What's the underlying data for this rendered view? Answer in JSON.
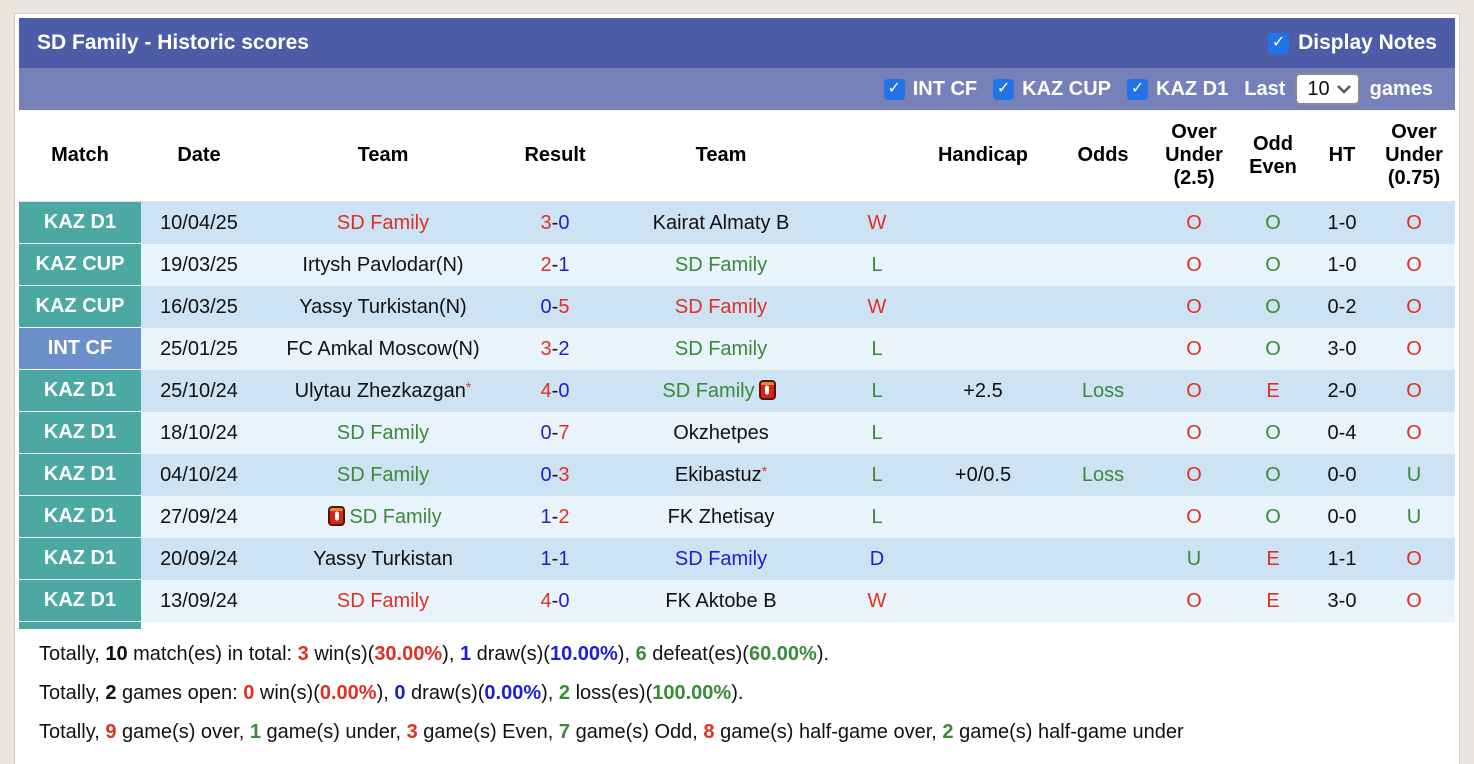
{
  "header": {
    "title": "SD Family - Historic scores",
    "display_notes": {
      "label": "Display Notes",
      "checked": true
    }
  },
  "filters": {
    "competitions": [
      {
        "label": "INT CF",
        "checked": true
      },
      {
        "label": "KAZ CUP",
        "checked": true
      },
      {
        "label": "KAZ D1",
        "checked": true
      }
    ],
    "last_label": "Last",
    "games_value": "10",
    "games_label": "games"
  },
  "colors": {
    "title_bar": "#4d5ca6",
    "filter_bar": "#7681ba",
    "checkbox_blue": "#2273e8",
    "badge_teal": "#4ba8a3",
    "badge_blue": "#6b90ca",
    "row_dark": "#cde2f3",
    "row_light": "#e9f3fb",
    "win_red": "#e03024",
    "loss_green": "#3b8a38",
    "draw_blue": "#1e1ed2"
  },
  "table": {
    "headers": [
      "Match",
      "Date",
      "Team",
      "Result",
      "Team",
      "",
      "Handicap",
      "Odds",
      "Over Under (2.5)",
      "Odd Even",
      "HT",
      "Over Under (0.75)"
    ],
    "rows": [
      {
        "league": "KAZ D1",
        "league_color": "teal",
        "date": "10/04/25",
        "home": {
          "name": "SD Family",
          "color": "red"
        },
        "result": {
          "home": "3",
          "home_color": "red",
          "away": "0",
          "away_color": "blue"
        },
        "away": {
          "name": "Kairat Almaty B",
          "color": "black"
        },
        "outcome": {
          "text": "W",
          "color": "red"
        },
        "handicap": "",
        "odds": {
          "text": "",
          "color": "green"
        },
        "ou25": {
          "text": "O",
          "color": "red"
        },
        "odd_even": {
          "text": "O",
          "color": "green"
        },
        "ht": "1-0",
        "ou075": {
          "text": "O",
          "color": "red"
        }
      },
      {
        "league": "KAZ CUP",
        "league_color": "teal",
        "date": "19/03/25",
        "home": {
          "name": "Irtysh Pavlodar(N)",
          "color": "black"
        },
        "result": {
          "home": "2",
          "home_color": "red",
          "away": "1",
          "away_color": "blue"
        },
        "away": {
          "name": "SD Family",
          "color": "green"
        },
        "outcome": {
          "text": "L",
          "color": "green"
        },
        "handicap": "",
        "odds": {
          "text": "",
          "color": "green"
        },
        "ou25": {
          "text": "O",
          "color": "red"
        },
        "odd_even": {
          "text": "O",
          "color": "green"
        },
        "ht": "1-0",
        "ou075": {
          "text": "O",
          "color": "red"
        }
      },
      {
        "league": "KAZ CUP",
        "league_color": "teal",
        "date": "16/03/25",
        "home": {
          "name": "Yassy Turkistan(N)",
          "color": "black"
        },
        "result": {
          "home": "0",
          "home_color": "blue",
          "away": "5",
          "away_color": "red"
        },
        "away": {
          "name": "SD Family",
          "color": "red"
        },
        "outcome": {
          "text": "W",
          "color": "red"
        },
        "handicap": "",
        "odds": {
          "text": "",
          "color": "green"
        },
        "ou25": {
          "text": "O",
          "color": "red"
        },
        "odd_even": {
          "text": "O",
          "color": "green"
        },
        "ht": "0-2",
        "ou075": {
          "text": "O",
          "color": "red"
        }
      },
      {
        "league": "INT CF",
        "league_color": "blue",
        "date": "25/01/25",
        "home": {
          "name": "FC Amkal Moscow(N)",
          "color": "black"
        },
        "result": {
          "home": "3",
          "home_color": "red",
          "away": "2",
          "away_color": "blue"
        },
        "away": {
          "name": "SD Family",
          "color": "green"
        },
        "outcome": {
          "text": "L",
          "color": "green"
        },
        "handicap": "",
        "odds": {
          "text": "",
          "color": "green"
        },
        "ou25": {
          "text": "O",
          "color": "red"
        },
        "odd_even": {
          "text": "O",
          "color": "green"
        },
        "ht": "3-0",
        "ou075": {
          "text": "O",
          "color": "red"
        }
      },
      {
        "league": "KAZ D1",
        "league_color": "teal",
        "date": "25/10/24",
        "home": {
          "name": "Ulytau Zhezkazgan",
          "color": "black",
          "star": true
        },
        "result": {
          "home": "4",
          "home_color": "red",
          "away": "0",
          "away_color": "blue"
        },
        "away": {
          "name": "SD Family",
          "color": "green",
          "card": "after"
        },
        "outcome": {
          "text": "L",
          "color": "green"
        },
        "handicap": "+2.5",
        "odds": {
          "text": "Loss",
          "color": "green"
        },
        "ou25": {
          "text": "O",
          "color": "red"
        },
        "odd_even": {
          "text": "E",
          "color": "red"
        },
        "ht": "2-0",
        "ou075": {
          "text": "O",
          "color": "red"
        }
      },
      {
        "league": "KAZ D1",
        "league_color": "teal",
        "date": "18/10/24",
        "home": {
          "name": "SD Family",
          "color": "green"
        },
        "result": {
          "home": "0",
          "home_color": "blue",
          "away": "7",
          "away_color": "red"
        },
        "away": {
          "name": "Okzhetpes",
          "color": "black"
        },
        "outcome": {
          "text": "L",
          "color": "green"
        },
        "handicap": "",
        "odds": {
          "text": "",
          "color": "green"
        },
        "ou25": {
          "text": "O",
          "color": "red"
        },
        "odd_even": {
          "text": "O",
          "color": "green"
        },
        "ht": "0-4",
        "ou075": {
          "text": "O",
          "color": "red"
        }
      },
      {
        "league": "KAZ D1",
        "league_color": "teal",
        "date": "04/10/24",
        "home": {
          "name": "SD Family",
          "color": "green"
        },
        "result": {
          "home": "0",
          "home_color": "blue",
          "away": "3",
          "away_color": "red"
        },
        "away": {
          "name": "Ekibastuz",
          "color": "black",
          "star": true
        },
        "outcome": {
          "text": "L",
          "color": "green"
        },
        "handicap": "+0/0.5",
        "odds": {
          "text": "Loss",
          "color": "green"
        },
        "ou25": {
          "text": "O",
          "color": "red"
        },
        "odd_even": {
          "text": "O",
          "color": "green"
        },
        "ht": "0-0",
        "ou075": {
          "text": "U",
          "color": "green"
        }
      },
      {
        "league": "KAZ D1",
        "league_color": "teal",
        "date": "27/09/24",
        "home": {
          "name": "SD Family",
          "color": "green",
          "card": "before"
        },
        "result": {
          "home": "1",
          "home_color": "blue",
          "away": "2",
          "away_color": "red"
        },
        "away": {
          "name": "FK Zhetisay",
          "color": "black"
        },
        "outcome": {
          "text": "L",
          "color": "green"
        },
        "handicap": "",
        "odds": {
          "text": "",
          "color": "green"
        },
        "ou25": {
          "text": "O",
          "color": "red"
        },
        "odd_even": {
          "text": "O",
          "color": "green"
        },
        "ht": "0-0",
        "ou075": {
          "text": "U",
          "color": "green"
        }
      },
      {
        "league": "KAZ D1",
        "league_color": "teal",
        "date": "20/09/24",
        "home": {
          "name": "Yassy Turkistan",
          "color": "black"
        },
        "result": {
          "home": "1",
          "home_color": "blue",
          "away": "1",
          "away_color": "blue"
        },
        "away": {
          "name": "SD Family",
          "color": "blue"
        },
        "outcome": {
          "text": "D",
          "color": "blue"
        },
        "handicap": "",
        "odds": {
          "text": "",
          "color": "green"
        },
        "ou25": {
          "text": "U",
          "color": "green"
        },
        "odd_even": {
          "text": "E",
          "color": "red"
        },
        "ht": "1-1",
        "ou075": {
          "text": "O",
          "color": "red"
        }
      },
      {
        "league": "KAZ D1",
        "league_color": "teal",
        "date": "13/09/24",
        "home": {
          "name": "SD Family",
          "color": "red"
        },
        "result": {
          "home": "4",
          "home_color": "red",
          "away": "0",
          "away_color": "blue"
        },
        "away": {
          "name": "FK Aktobe B",
          "color": "black"
        },
        "outcome": {
          "text": "W",
          "color": "red"
        },
        "handicap": "",
        "odds": {
          "text": "",
          "color": "green"
        },
        "ou25": {
          "text": "O",
          "color": "red"
        },
        "odd_even": {
          "text": "E",
          "color": "red"
        },
        "ht": "3-0",
        "ou075": {
          "text": "O",
          "color": "red"
        }
      }
    ]
  },
  "summary": {
    "lines": [
      [
        {
          "text": "Totally, ",
          "style": "plain"
        },
        {
          "text": "10",
          "style": "bold"
        },
        {
          "text": " match(es) in total: ",
          "style": "plain"
        },
        {
          "text": "3",
          "style": "red"
        },
        {
          "text": " win(s)(",
          "style": "plain"
        },
        {
          "text": "30.00%",
          "style": "red"
        },
        {
          "text": "), ",
          "style": "plain"
        },
        {
          "text": "1",
          "style": "blue"
        },
        {
          "text": " draw(s)(",
          "style": "plain"
        },
        {
          "text": "10.00%",
          "style": "blue"
        },
        {
          "text": "), ",
          "style": "plain"
        },
        {
          "text": "6",
          "style": "green"
        },
        {
          "text": " defeat(es)(",
          "style": "plain"
        },
        {
          "text": "60.00%",
          "style": "green"
        },
        {
          "text": ").",
          "style": "plain"
        }
      ],
      [
        {
          "text": "Totally, ",
          "style": "plain"
        },
        {
          "text": "2",
          "style": "bold"
        },
        {
          "text": " games open: ",
          "style": "plain"
        },
        {
          "text": "0",
          "style": "red"
        },
        {
          "text": " win(s)(",
          "style": "plain"
        },
        {
          "text": "0.00%",
          "style": "red"
        },
        {
          "text": "), ",
          "style": "plain"
        },
        {
          "text": "0",
          "style": "blue"
        },
        {
          "text": " draw(s)(",
          "style": "plain"
        },
        {
          "text": "0.00%",
          "style": "blue"
        },
        {
          "text": "), ",
          "style": "plain"
        },
        {
          "text": "2",
          "style": "green"
        },
        {
          "text": " loss(es)(",
          "style": "plain"
        },
        {
          "text": "100.00%",
          "style": "green"
        },
        {
          "text": ").",
          "style": "plain"
        }
      ],
      [
        {
          "text": "Totally, ",
          "style": "plain"
        },
        {
          "text": "9",
          "style": "red"
        },
        {
          "text": " game(s) over, ",
          "style": "plain"
        },
        {
          "text": "1",
          "style": "green"
        },
        {
          "text": " game(s) under, ",
          "style": "plain"
        },
        {
          "text": "3",
          "style": "red"
        },
        {
          "text": " game(s) Even, ",
          "style": "plain"
        },
        {
          "text": "7",
          "style": "green"
        },
        {
          "text": " game(s) Odd, ",
          "style": "plain"
        },
        {
          "text": "8",
          "style": "red"
        },
        {
          "text": " game(s) half-game over, ",
          "style": "plain"
        },
        {
          "text": "2",
          "style": "green"
        },
        {
          "text": " game(s) half-game under",
          "style": "plain"
        }
      ]
    ]
  }
}
